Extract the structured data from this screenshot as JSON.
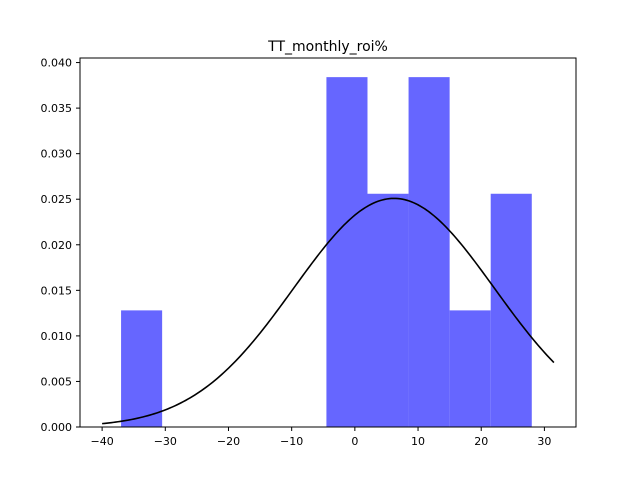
{
  "chart_data": {
    "type": "bar",
    "title": "TT_monthly_roi%",
    "xlabel": "",
    "ylabel": "",
    "xlim": [
      -43.5,
      35.0
    ],
    "ylim": [
      0.0,
      0.0405
    ],
    "xticks": [
      -40,
      -30,
      -20,
      -10,
      0,
      10,
      20,
      30
    ],
    "yticks": [
      0.0,
      0.005,
      0.01,
      0.015,
      0.02,
      0.025,
      0.03,
      0.035,
      0.04
    ],
    "ytick_labels": [
      "0.000",
      "0.005",
      "0.010",
      "0.015",
      "0.020",
      "0.025",
      "0.030",
      "0.035",
      "0.040"
    ],
    "grid": false,
    "series": [
      {
        "kind": "histogram",
        "color": "#6666ff",
        "bins": [
          {
            "x0": -37.0,
            "x1": -30.5,
            "value": 0.0128
          },
          {
            "x0": -30.5,
            "x1": -24.0,
            "value": 0.0
          },
          {
            "x0": -24.0,
            "x1": -17.5,
            "value": 0.0
          },
          {
            "x0": -17.5,
            "x1": -11.0,
            "value": 0.0
          },
          {
            "x0": -11.0,
            "x1": -4.5,
            "value": 0.0
          },
          {
            "x0": -4.5,
            "x1": 2.0,
            "value": 0.0384
          },
          {
            "x0": 2.0,
            "x1": 8.5,
            "value": 0.0256
          },
          {
            "x0": 8.5,
            "x1": 15.0,
            "value": 0.0384
          },
          {
            "x0": 15.0,
            "x1": 21.5,
            "value": 0.0128
          },
          {
            "x0": 21.5,
            "x1": 28.0,
            "value": 0.0256
          }
        ]
      },
      {
        "kind": "line",
        "color": "#000000",
        "curve": "normal-pdf",
        "mean": 6.2,
        "std": 15.9,
        "x_range": [
          -40.0,
          31.5
        ]
      }
    ]
  }
}
